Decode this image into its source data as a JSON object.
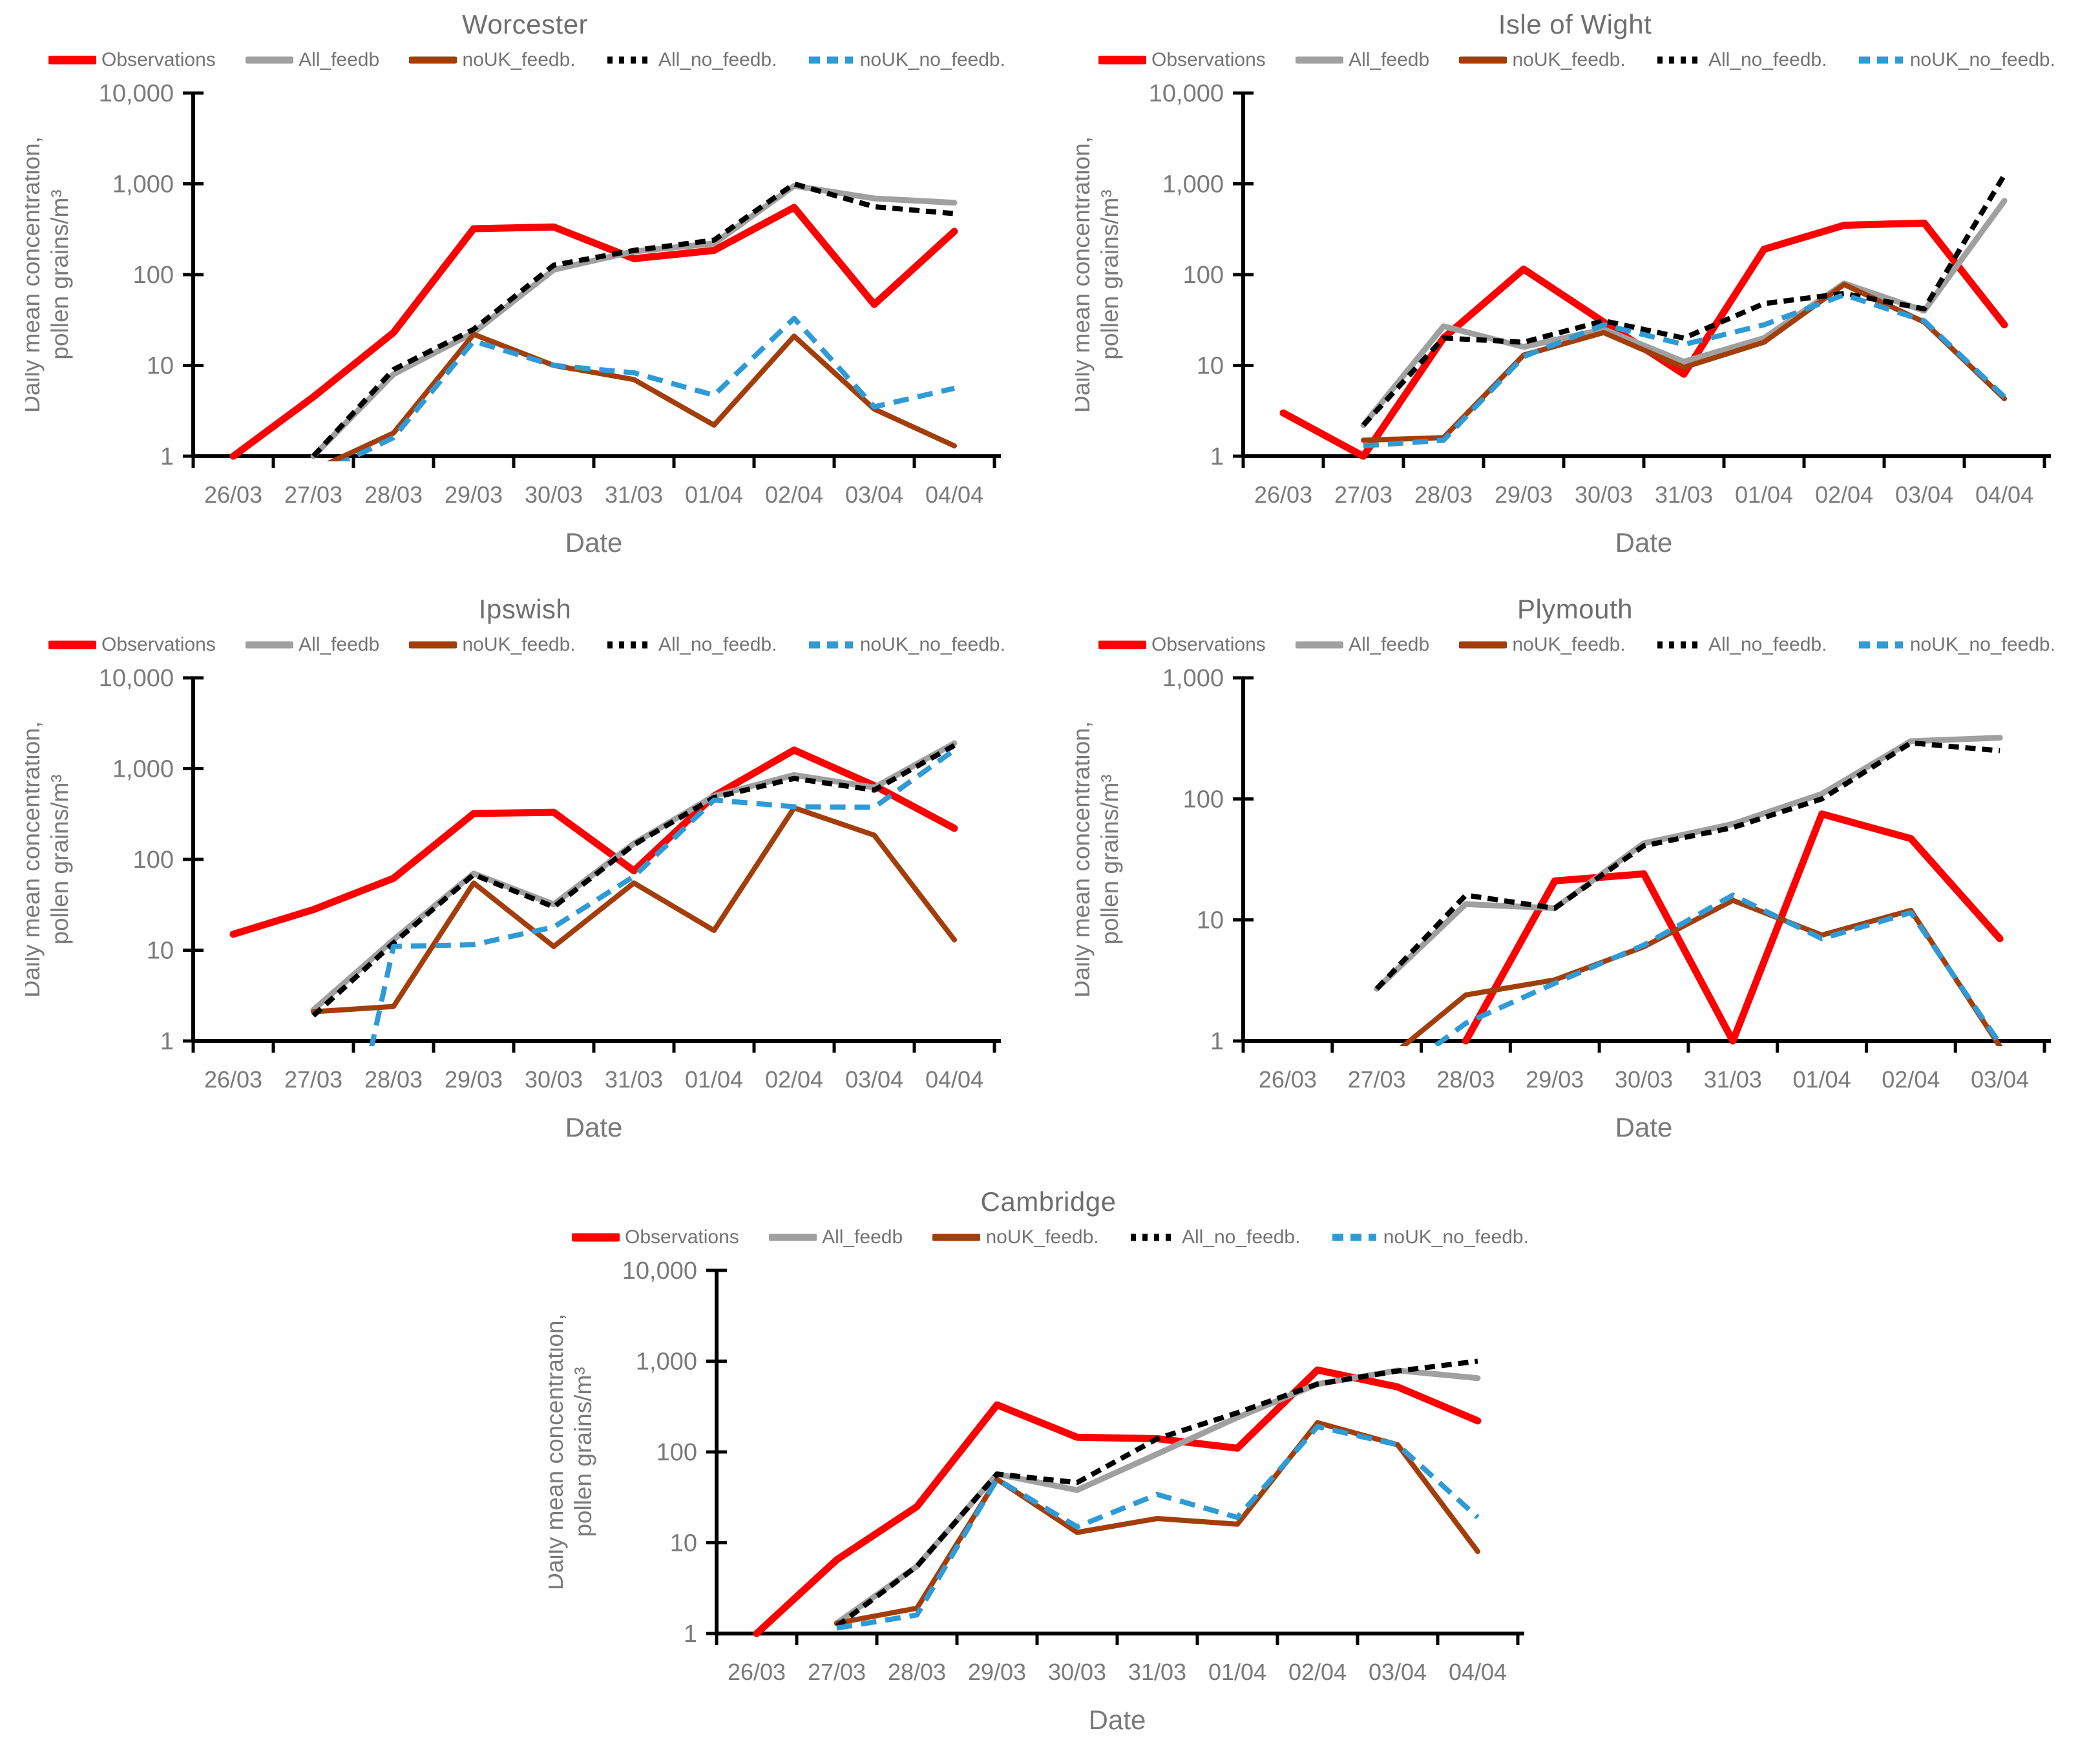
{
  "figure": {
    "background": "#ffffff",
    "text_color": "#7a7a7a",
    "title_color": "#6e6e6e",
    "axis_color": "#000000"
  },
  "axis_labels": {
    "y_line1": "Daily mean concentration,",
    "y_line2": "pollen grains/m³",
    "x": "Date"
  },
  "legend": [
    {
      "series": "observations",
      "label": "Observations"
    },
    {
      "series": "all_feedb",
      "label": "All_feedb"
    },
    {
      "series": "nouk_feedb",
      "label": "noUK_feedb."
    },
    {
      "series": "all_no_feedb",
      "label": "All_no_feedb."
    },
    {
      "series": "nouk_no_feedb",
      "label": "noUK_no_feedb."
    }
  ],
  "series_styles": {
    "observations": {
      "color": "#FF0000",
      "dash": "none",
      "width": 11,
      "legend_dash": "none"
    },
    "all_feedb": {
      "color": "#A0A0A0",
      "dash": "none",
      "width": 9,
      "legend_dash": "none"
    },
    "nouk_feedb": {
      "color": "#A33E0B",
      "dash": "none",
      "width": 8,
      "legend_dash": "none"
    },
    "all_no_feedb": {
      "color": "#000000",
      "dash": "16 10",
      "width": 8,
      "legend_dash": "8 10"
    },
    "nouk_no_feedb": {
      "color": "#2E9BD6",
      "dash": "24 14",
      "width": 8,
      "legend_dash": "17 11"
    }
  },
  "chart_data": [
    {
      "type": "line",
      "title": "Worcester",
      "xlabel": "Date",
      "ylabel": "Daily mean concentration, pollen grains/m³",
      "ylim": [
        1,
        10000
      ],
      "y_ticks": [
        "1",
        "10",
        "100",
        "1,000",
        "10,000"
      ],
      "grid": false,
      "legend_position": "top",
      "categories": [
        "26/03",
        "27/03",
        "28/03",
        "29/03",
        "30/03",
        "31/03",
        "01/04",
        "02/04",
        "03/04",
        "04/04"
      ],
      "series": {
        "observations": [
          1,
          4.5,
          23,
          320,
          335,
          150,
          185,
          550,
          47,
          300
        ],
        "all_feedb": [
          null,
          1,
          8,
          23,
          113,
          180,
          220,
          950,
          690,
          620
        ],
        "nouk_feedb": [
          null,
          0.7,
          1.8,
          22,
          10,
          7,
          2.2,
          21,
          3.3,
          1.3
        ],
        "all_no_feedb": [
          null,
          1,
          9,
          25,
          127,
          185,
          240,
          1000,
          560,
          470
        ],
        "nouk_no_feedb": [
          null,
          0.6,
          1.6,
          18.5,
          10,
          8.3,
          4.7,
          33,
          3.5,
          5.6
        ]
      }
    },
    {
      "type": "line",
      "title": "Isle of Wight",
      "xlabel": "Date",
      "ylabel": "Daily mean concentration, pollen grains/m³",
      "ylim": [
        1,
        10000
      ],
      "y_ticks": [
        "1",
        "10",
        "100",
        "1,000",
        "10,000"
      ],
      "grid": false,
      "legend_position": "top",
      "categories": [
        "26/03",
        "27/03",
        "28/03",
        "29/03",
        "30/03",
        "31/03",
        "01/04",
        "02/04",
        "03/04",
        "04/04"
      ],
      "series": {
        "observations": [
          3,
          1,
          20,
          115,
          30,
          8,
          190,
          350,
          370,
          28
        ],
        "all_feedb": [
          null,
          2.2,
          27,
          16,
          25,
          11,
          20,
          80,
          40,
          650
        ],
        "nouk_feedb": [
          null,
          1.5,
          1.6,
          13,
          23,
          9.5,
          18,
          78,
          30,
          4.3
        ],
        "all_no_feedb": [
          null,
          2.2,
          20,
          18,
          31,
          20,
          48,
          62,
          42,
          1250
        ],
        "nouk_no_feedb": [
          null,
          1.3,
          1.5,
          12.5,
          28,
          17,
          28,
          60,
          31,
          4.5
        ]
      }
    },
    {
      "type": "line",
      "title": "Ipswish",
      "xlabel": "Date",
      "ylabel": "Daily mean concentration, pollen grains/m³",
      "ylim": [
        1,
        10000
      ],
      "y_ticks": [
        "1",
        "10",
        "100",
        "1,000",
        "10,000"
      ],
      "grid": false,
      "legend_position": "top",
      "categories": [
        "26/03",
        "27/03",
        "28/03",
        "29/03",
        "30/03",
        "31/03",
        "01/04",
        "02/04",
        "03/04",
        "04/04"
      ],
      "series": {
        "observations": [
          15,
          28,
          62,
          320,
          330,
          75,
          500,
          1600,
          650,
          220
        ],
        "all_feedb": [
          null,
          2.2,
          13,
          70,
          32,
          150,
          500,
          850,
          620,
          1900
        ],
        "nouk_feedb": [
          null,
          2.1,
          2.4,
          55,
          11,
          55,
          16.5,
          370,
          185,
          13
        ],
        "all_no_feedb": [
          null,
          1.9,
          12,
          68,
          30,
          145,
          480,
          780,
          580,
          1800
        ],
        "nouk_no_feedb": [
          null,
          0.001,
          11,
          11.5,
          18,
          65,
          450,
          380,
          375,
          1600
        ]
      }
    },
    {
      "type": "line",
      "title": "Plymouth",
      "xlabel": "Date",
      "ylabel": "Daily mean concentration, pollen grains/m³",
      "ylim": [
        1,
        1000
      ],
      "y_ticks": [
        "1",
        "10",
        "100",
        "1,000"
      ],
      "grid": false,
      "legend_position": "top",
      "categories": [
        "26/03",
        "27/03",
        "28/03",
        "29/03",
        "30/03",
        "31/03",
        "01/04",
        "02/04",
        "03/04"
      ],
      "series": {
        "observations": [
          null,
          null,
          1,
          21,
          24,
          1,
          75,
          47,
          7
        ],
        "all_feedb": [
          null,
          2.7,
          13.5,
          12.5,
          43,
          62,
          110,
          300,
          320
        ],
        "nouk_feedb": [
          null,
          0.6,
          2.4,
          3.2,
          6,
          14.5,
          7.5,
          12,
          0.9
        ],
        "all_no_feedb": [
          null,
          2.7,
          16,
          12.5,
          41,
          58,
          100,
          290,
          250
        ],
        "nouk_no_feedb": [
          null,
          0.4,
          1.4,
          3,
          6.2,
          16,
          7,
          11.5,
          0.95
        ]
      }
    },
    {
      "type": "line",
      "title": "Cambridge",
      "xlabel": "Date",
      "ylabel": "Daily mean concentration, pollen grains/m³",
      "ylim": [
        1,
        10000
      ],
      "y_ticks": [
        "1",
        "10",
        "100",
        "1,000",
        "10,000"
      ],
      "grid": false,
      "legend_position": "top",
      "categories": [
        "26/03",
        "27/03",
        "28/03",
        "29/03",
        "30/03",
        "31/03",
        "01/04",
        "02/04",
        "03/04",
        "04/04"
      ],
      "series": {
        "observations": [
          1,
          6.5,
          25,
          330,
          145,
          140,
          110,
          800,
          520,
          220
        ],
        "all_feedb": [
          null,
          1.3,
          5.5,
          57,
          38,
          95,
          240,
          560,
          790,
          650
        ],
        "nouk_feedb": [
          null,
          1.3,
          1.9,
          50,
          13,
          18.5,
          16,
          210,
          120,
          8
        ],
        "all_no_feedb": [
          null,
          1.2,
          5.5,
          57,
          46,
          140,
          270,
          560,
          780,
          1000
        ],
        "nouk_no_feedb": [
          null,
          1.15,
          1.6,
          50,
          15,
          34,
          19,
          190,
          120,
          19
        ]
      }
    }
  ]
}
